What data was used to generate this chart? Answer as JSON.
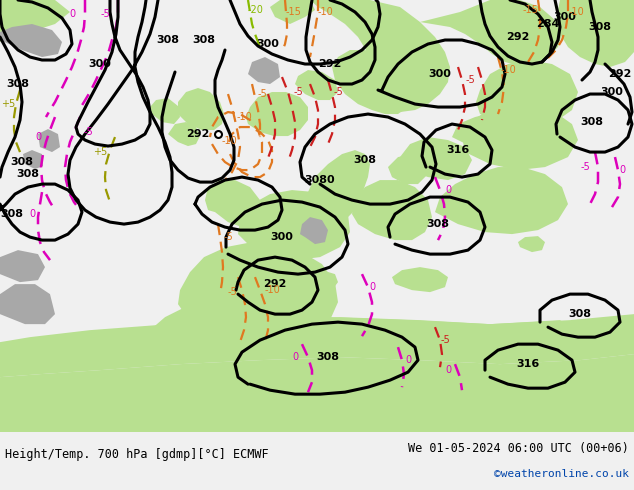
{
  "title_left": "Height/Temp. 700 hPa [gdmp][°C] ECMWF",
  "title_right": "We 01-05-2024 06:00 UTC (00+06)",
  "credit": "©weatheronline.co.uk",
  "bg_gray": "#c8c8c8",
  "land_green": "#b8e090",
  "land_gray": "#a8a8a8",
  "sea_light": "#dcdcdc",
  "bottom_bg": "#f0f0f0",
  "text_color": "#000000",
  "credit_color": "#0044aa",
  "figsize": [
    6.34,
    4.9
  ],
  "dpi": 100,
  "black_lw": 2.2,
  "temp_lw": 1.6
}
